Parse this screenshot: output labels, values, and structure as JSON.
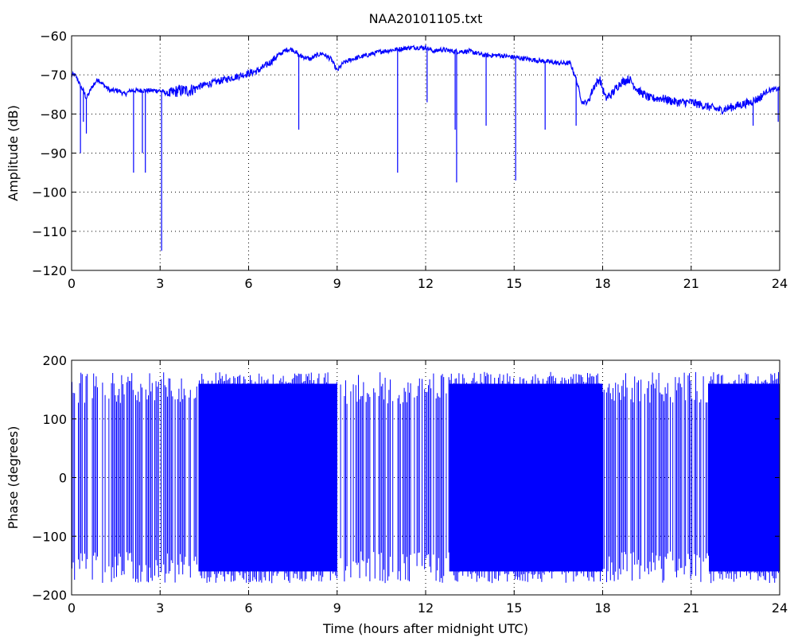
{
  "figure": {
    "title": "NAA20101105.txt"
  },
  "chart_data": [
    {
      "type": "line",
      "title": "NAA20101105.txt",
      "xlabel": "",
      "ylabel": "Amplitude (dB)",
      "xlim": [
        0,
        24
      ],
      "ylim": [
        -120,
        -60
      ],
      "xticks": [
        0,
        3,
        6,
        9,
        12,
        15,
        18,
        21,
        24
      ],
      "yticks": [
        -120,
        -110,
        -100,
        -90,
        -80,
        -70,
        -60
      ],
      "grid": true,
      "line_color": "#0000ff",
      "series": [
        {
          "x": [
            0,
            0.1,
            0.2,
            0.3,
            0.4,
            0.5,
            0.7,
            0.9,
            1.0,
            1.3,
            1.6,
            1.8,
            2.0,
            2.3,
            2.6,
            2.8,
            3.0,
            3.3,
            3.6,
            4.0,
            4.3,
            4.8,
            5.3,
            5.8,
            6.3,
            6.7,
            7.0,
            7.3,
            7.5,
            7.7,
            7.9,
            8.1,
            8.3,
            8.5,
            8.8,
            9.0,
            9.2,
            9.5,
            10.0,
            10.5,
            11.0,
            11.5,
            12.0,
            12.3,
            12.5,
            13.0,
            13.5,
            14.0,
            14.5,
            15.0,
            15.5,
            16.0,
            16.5,
            16.9,
            17.1,
            17.3,
            17.5,
            17.7,
            17.9,
            18.1,
            18.3,
            18.6,
            18.9,
            19.2,
            19.6,
            20.0,
            20.5,
            21.0,
            21.5,
            22.0,
            22.5,
            23.0,
            23.3,
            23.6,
            24.0
          ],
          "y": [
            -70,
            -70,
            -71,
            -73,
            -74,
            -76,
            -73,
            -71,
            -72,
            -74,
            -74,
            -75,
            -74,
            -74,
            -74,
            -74,
            -74,
            -75,
            -74,
            -74,
            -73,
            -72,
            -71,
            -70,
            -69,
            -67,
            -65,
            -63.5,
            -63.5,
            -65,
            -65.5,
            -66,
            -65,
            -64.5,
            -66,
            -69,
            -67,
            -66,
            -65,
            -64,
            -63.5,
            -63,
            -63,
            -64,
            -63.5,
            -64,
            -64,
            -65,
            -65,
            -65.5,
            -66,
            -66.5,
            -67,
            -67,
            -71,
            -77,
            -77,
            -73,
            -71,
            -76,
            -75,
            -72,
            -71,
            -74,
            -76,
            -76,
            -77,
            -77,
            -78,
            -79,
            -78,
            -77,
            -76,
            -74,
            -73.5
          ]
        }
      ],
      "spikes": [
        {
          "x": 0.3,
          "y": -90
        },
        {
          "x": 0.4,
          "y": -82
        },
        {
          "x": 0.5,
          "y": -85
        },
        {
          "x": 2.1,
          "y": -95
        },
        {
          "x": 2.4,
          "y": -90
        },
        {
          "x": 2.5,
          "y": -95
        },
        {
          "x": 3.05,
          "y": -115
        },
        {
          "x": 7.7,
          "y": -84
        },
        {
          "x": 11.05,
          "y": -95
        },
        {
          "x": 12.05,
          "y": -77
        },
        {
          "x": 13.0,
          "y": -84
        },
        {
          "x": 13.05,
          "y": -97.5
        },
        {
          "x": 14.05,
          "y": -83
        },
        {
          "x": 15.05,
          "y": -97
        },
        {
          "x": 16.05,
          "y": -84
        },
        {
          "x": 17.1,
          "y": -83
        },
        {
          "x": 23.1,
          "y": -83
        },
        {
          "x": 23.95,
          "y": -82
        }
      ]
    },
    {
      "type": "line",
      "title": "",
      "xlabel": "Time (hours after midnight UTC)",
      "ylabel": "Phase (degrees)",
      "xlim": [
        0,
        24
      ],
      "ylim": [
        -200,
        200
      ],
      "xticks": [
        0,
        3,
        6,
        9,
        12,
        15,
        18,
        21,
        24
      ],
      "yticks": [
        -200,
        -100,
        0,
        100,
        200
      ],
      "grid": true,
      "line_color": "#0000ff",
      "value_range": [
        -180,
        180
      ],
      "dense_segments": [
        [
          4.3,
          9.0
        ],
        [
          12.8,
          18.0
        ],
        [
          21.6,
          24.0
        ]
      ]
    }
  ]
}
